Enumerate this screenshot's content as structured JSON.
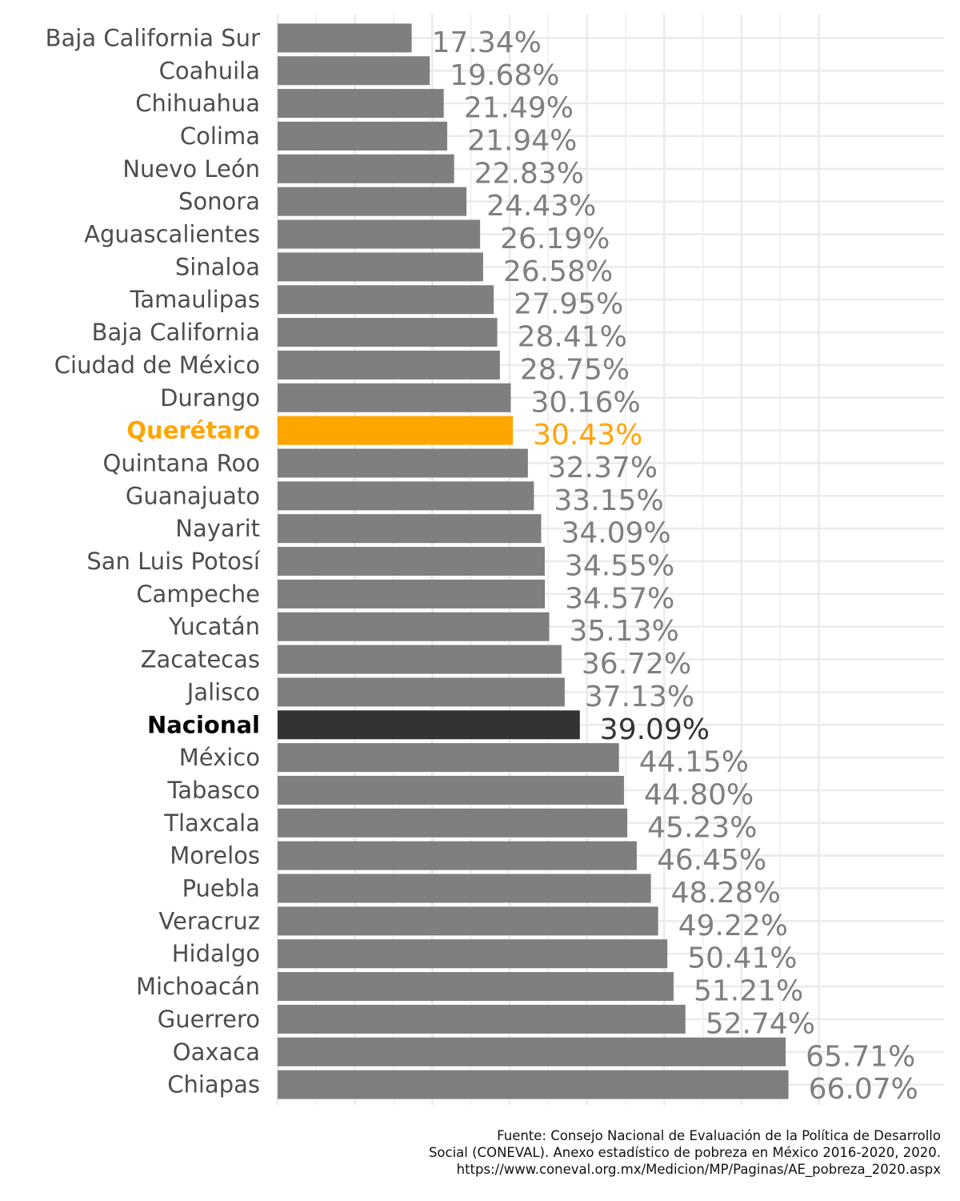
{
  "chart_data": {
    "type": "bar",
    "orientation": "horizontal",
    "title": "",
    "xlabel": "",
    "ylabel": "",
    "xlim": [
      0,
      70
    ],
    "grid": true,
    "legend": "none",
    "bar_color": "#7f7f7f",
    "highlight_color": "#ffa500",
    "national_color": "#333333",
    "label_color": "#7f7f7f",
    "categories": [
      "Baja California Sur",
      "Coahuila",
      "Chihuahua",
      "Colima",
      "Nuevo León",
      "Sonora",
      "Aguascalientes",
      "Sinaloa",
      "Tamaulipas",
      "Baja California",
      "Ciudad de México",
      "Durango",
      "Querétaro",
      "Quintana Roo",
      "Guanajuato",
      "Nayarit",
      "San Luis Potosí",
      "Campeche",
      "Yucatán",
      "Zacatecas",
      "Jalisco",
      "Nacional",
      "México",
      "Tabasco",
      "Tlaxcala",
      "Morelos",
      "Puebla",
      "Veracruz",
      "Hidalgo",
      "Michoacán",
      "Guerrero",
      "Oaxaca",
      "Chiapas"
    ],
    "values": [
      17.34,
      19.68,
      21.49,
      21.94,
      22.83,
      24.43,
      26.19,
      26.58,
      27.95,
      28.41,
      28.75,
      30.16,
      30.43,
      32.37,
      33.15,
      34.09,
      34.55,
      34.57,
      35.13,
      36.72,
      37.13,
      39.09,
      44.15,
      44.8,
      45.23,
      46.45,
      48.28,
      49.22,
      50.41,
      51.21,
      52.74,
      65.71,
      66.07
    ],
    "value_labels": [
      "17.34%",
      "19.68%",
      "21.49%",
      "21.94%",
      "22.83%",
      "24.43%",
      "26.19%",
      "26.58%",
      "27.95%",
      "28.41%",
      "28.75%",
      "30.16%",
      "30.43%",
      "32.37%",
      "33.15%",
      "34.09%",
      "34.55%",
      "34.57%",
      "35.13%",
      "36.72%",
      "37.13%",
      "39.09%",
      "44.15%",
      "44.80%",
      "45.23%",
      "46.45%",
      "48.28%",
      "49.22%",
      "50.41%",
      "51.21%",
      "52.74%",
      "65.71%",
      "66.07%"
    ],
    "highlight": "Querétaro",
    "national": "Nacional"
  },
  "caption": {
    "line1": "Fuente: Consejo Nacional de Evaluación de la Política de Desarrollo",
    "line2": "Social (CONEVAL). Anexo estadístico de pobreza en México 2016-2020, 2020.",
    "line3": "https://www.coneval.org.mx/Medicion/MP/Paginas/AE_pobreza_2020.aspx"
  }
}
